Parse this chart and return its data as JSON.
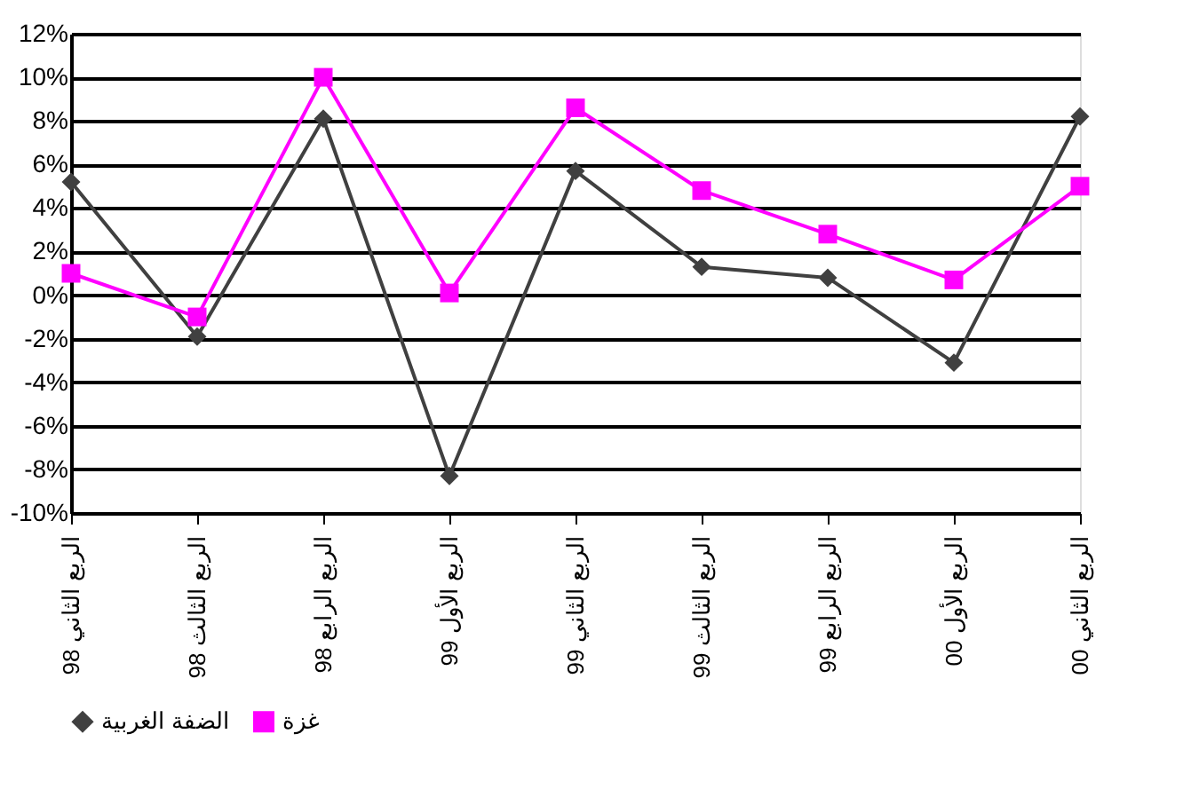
{
  "chart_data": {
    "type": "line",
    "categories": [
      "الربع الثاني 98",
      "الربع الثالث 98",
      "الربع الرابع 98",
      "الربع الأول 99",
      "الربع الثاني 99",
      "الربع الثالث 99",
      "الربع الرابع 99",
      "الربع الأول 00",
      "الربع الثاني 00"
    ],
    "series": [
      {
        "name": "الضفة الغربية",
        "color": "#404040",
        "marker": "diamond",
        "values": [
          5.2,
          -1.9,
          8.1,
          -8.3,
          5.7,
          1.3,
          0.8,
          -3.1,
          8.2
        ]
      },
      {
        "name": "غزة",
        "color": "#ff00ff",
        "marker": "square",
        "values": [
          1.0,
          -1.0,
          10.0,
          0.1,
          8.6,
          4.8,
          2.8,
          0.7,
          5.0
        ]
      }
    ],
    "ylim": [
      -10,
      12
    ],
    "yticks": [
      {
        "value": -10,
        "label": "-10%"
      },
      {
        "value": -8,
        "label": "-8%"
      },
      {
        "value": -6,
        "label": "-6%"
      },
      {
        "value": -4,
        "label": "-4%"
      },
      {
        "value": -2,
        "label": "-2%"
      },
      {
        "value": 0,
        "label": "0%"
      },
      {
        "value": 2,
        "label": "2%"
      },
      {
        "value": 4,
        "label": "4%"
      },
      {
        "value": 6,
        "label": "6%"
      },
      {
        "value": 8,
        "label": "8%"
      },
      {
        "value": 10,
        "label": "10%"
      },
      {
        "value": 12,
        "label": "12%"
      }
    ],
    "grid": "y",
    "legend": "bottom"
  }
}
